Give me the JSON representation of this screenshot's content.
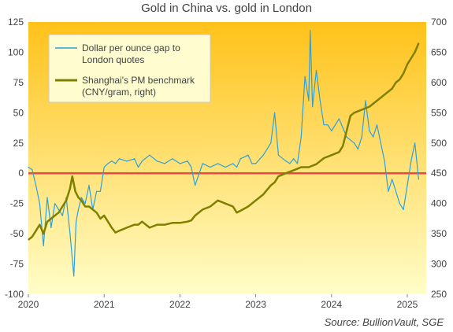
{
  "chart_data": {
    "type": "line",
    "title": "Gold in China vs. gold in London",
    "source": "Source: BullionVault, SGE",
    "x_ticks": [
      "2020",
      "2021",
      "2022",
      "2023",
      "2024",
      "2025"
    ],
    "y_left_ticks": [
      125,
      100,
      75,
      50,
      25,
      0,
      -25,
      -50,
      -75,
      -100
    ],
    "y_right_ticks": [
      700,
      650,
      600,
      550,
      500,
      450,
      400,
      350,
      300,
      250
    ],
    "ylim_left": [
      -100,
      125
    ],
    "ylim_right": [
      250,
      700
    ],
    "xlim": [
      2020.0,
      2025.25
    ],
    "zero_line_color": "#e8474a",
    "background_gradient": [
      "#ffc21a",
      "#fffdc8"
    ],
    "legend_position": "top-left",
    "series": [
      {
        "name": "Dollar per ounce gap to London quotes",
        "axis": "left",
        "color": "#2ca0dd",
        "x": [
          2020.0,
          2020.05,
          2020.1,
          2020.15,
          2020.2,
          2020.25,
          2020.3,
          2020.35,
          2020.4,
          2020.45,
          2020.5,
          2020.55,
          2020.6,
          2020.63,
          2020.66,
          2020.7,
          2020.75,
          2020.8,
          2020.85,
          2020.9,
          2020.95,
          2021.0,
          2021.05,
          2021.1,
          2021.15,
          2021.2,
          2021.3,
          2021.4,
          2021.45,
          2021.5,
          2021.6,
          2021.7,
          2021.8,
          2021.9,
          2022.0,
          2022.1,
          2022.15,
          2022.2,
          2022.3,
          2022.4,
          2022.5,
          2022.6,
          2022.7,
          2022.75,
          2022.8,
          2022.9,
          2022.95,
          2023.0,
          2023.1,
          2023.2,
          2023.25,
          2023.3,
          2023.4,
          2023.45,
          2023.5,
          2023.55,
          2023.6,
          2023.65,
          2023.7,
          2023.72,
          2023.75,
          2023.8,
          2023.85,
          2023.9,
          2023.95,
          2024.0,
          2024.1,
          2024.2,
          2024.3,
          2024.35,
          2024.4,
          2024.45,
          2024.5,
          2024.55,
          2024.6,
          2024.65,
          2024.7,
          2024.75,
          2024.8,
          2024.85,
          2024.9,
          2024.95,
          2025.0,
          2025.05,
          2025.1,
          2025.15
        ],
        "values": [
          5,
          3,
          -10,
          -25,
          -60,
          -20,
          -45,
          -25,
          -30,
          -35,
          -20,
          -50,
          -85,
          -40,
          -30,
          -20,
          -25,
          -10,
          -30,
          -15,
          -15,
          5,
          8,
          10,
          8,
          12,
          10,
          12,
          5,
          10,
          15,
          10,
          8,
          12,
          8,
          10,
          5,
          -10,
          8,
          5,
          8,
          5,
          8,
          5,
          12,
          15,
          8,
          8,
          15,
          25,
          50,
          15,
          10,
          8,
          12,
          8,
          30,
          80,
          60,
          118,
          55,
          85,
          60,
          40,
          40,
          35,
          45,
          30,
          25,
          20,
          30,
          60,
          35,
          30,
          40,
          25,
          10,
          -15,
          -5,
          -15,
          -25,
          -30,
          -10,
          10,
          25,
          -5
        ]
      },
      {
        "name": "Shanghai's PM benchmark (CNY/gram, right)",
        "axis": "right",
        "color": "#808000",
        "x": [
          2020.0,
          2020.05,
          2020.1,
          2020.15,
          2020.2,
          2020.25,
          2020.3,
          2020.35,
          2020.4,
          2020.45,
          2020.5,
          2020.55,
          2020.58,
          2020.62,
          2020.66,
          2020.7,
          2020.75,
          2020.8,
          2020.85,
          2020.9,
          2020.95,
          2021.0,
          2021.05,
          2021.1,
          2021.15,
          2021.2,
          2021.3,
          2021.4,
          2021.45,
          2021.5,
          2021.6,
          2021.7,
          2021.8,
          2021.9,
          2022.0,
          2022.1,
          2022.15,
          2022.2,
          2022.3,
          2022.4,
          2022.5,
          2022.6,
          2022.7,
          2022.75,
          2022.8,
          2022.9,
          2023.0,
          2023.1,
          2023.2,
          2023.25,
          2023.3,
          2023.4,
          2023.5,
          2023.6,
          2023.7,
          2023.8,
          2023.9,
          2024.0,
          2024.1,
          2024.15,
          2024.2,
          2024.25,
          2024.3,
          2024.4,
          2024.5,
          2024.6,
          2024.7,
          2024.8,
          2024.85,
          2024.9,
          2024.95,
          2025.0,
          2025.05,
          2025.1,
          2025.15
        ],
        "values": [
          340,
          345,
          355,
          365,
          350,
          370,
          375,
          380,
          385,
          395,
          405,
          425,
          445,
          420,
          410,
          405,
          395,
          395,
          390,
          385,
          375,
          380,
          370,
          360,
          352,
          355,
          360,
          365,
          365,
          370,
          360,
          365,
          365,
          368,
          368,
          370,
          372,
          380,
          390,
          395,
          405,
          400,
          395,
          385,
          388,
          395,
          405,
          415,
          430,
          435,
          445,
          450,
          455,
          460,
          460,
          465,
          475,
          480,
          485,
          495,
          520,
          545,
          550,
          555,
          560,
          570,
          580,
          590,
          600,
          605,
          615,
          630,
          640,
          650,
          665
        ]
      }
    ]
  }
}
